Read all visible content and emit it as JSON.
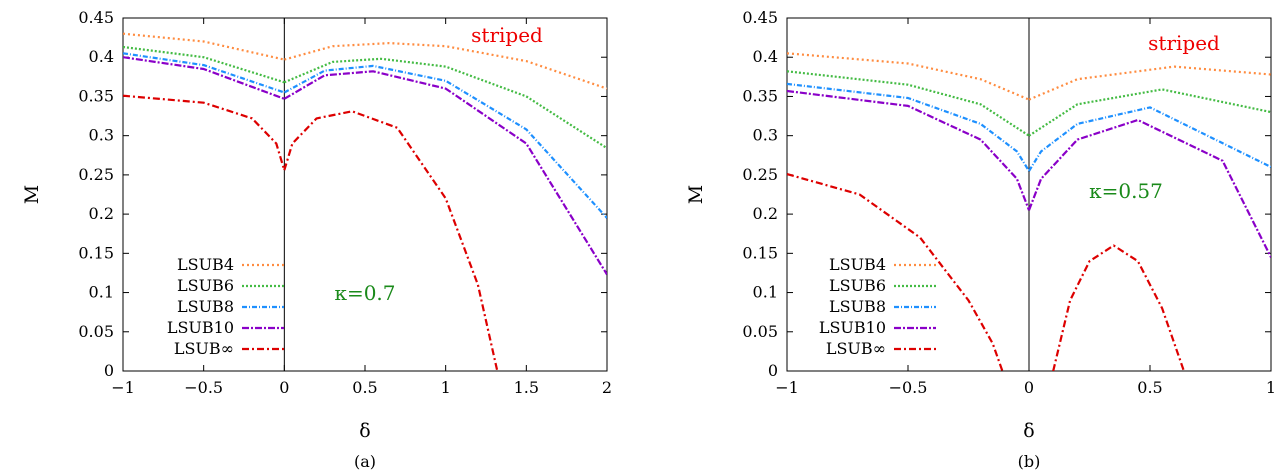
{
  "chart_data": [
    {
      "type": "line",
      "panel_label": "(a)",
      "xlabel": "δ",
      "ylabel": "M",
      "xlim": [
        -1,
        2
      ],
      "ylim": [
        0,
        0.45
      ],
      "xticks": [
        -1,
        -0.5,
        0,
        0.5,
        1,
        1.5,
        2
      ],
      "xtick_labels": [
        "−1",
        "−0.5",
        "0",
        "0.5",
        "1",
        "1.5",
        "2"
      ],
      "yticks": [
        0,
        0.05,
        0.1,
        0.15,
        0.2,
        0.25,
        0.3,
        0.35,
        0.4,
        0.45
      ],
      "ytick_labels": [
        "0",
        "0.05",
        "0.1",
        "0.15",
        "0.2",
        "0.25",
        "0.3",
        "0.35",
        "0.4",
        "0.45"
      ],
      "annotations": [
        {
          "text": "striped",
          "color": "#ee0000",
          "anchor_x": 1.55,
          "anchor_y": 0.425
        },
        {
          "text": "κ=0.7",
          "color": "#1a8a1a",
          "anchor_x": 0.52,
          "anchor_y": 0.105
        }
      ],
      "grid": false,
      "legend_position": "bottom-left",
      "series": [
        {
          "name": "LSUB4",
          "color": "#ff8c40",
          "dash": "2,3",
          "branches": [
            {
              "x": [
                -1,
                -0.5,
                0
              ],
              "y": [
                0.43,
                0.42,
                0.397
              ]
            },
            {
              "x": [
                0,
                0.3,
                0.65,
                1,
                1.5,
                2
              ],
              "y": [
                0.397,
                0.414,
                0.418,
                0.414,
                0.395,
                0.36
              ]
            }
          ]
        },
        {
          "name": "LSUB6",
          "color": "#44bb44",
          "dash": "2,2",
          "branches": [
            {
              "x": [
                -1,
                -0.5,
                0
              ],
              "y": [
                0.413,
                0.4,
                0.368
              ]
            },
            {
              "x": [
                0,
                0.3,
                0.6,
                1,
                1.5,
                2
              ],
              "y": [
                0.368,
                0.394,
                0.398,
                0.388,
                0.35,
                0.284
              ]
            }
          ]
        },
        {
          "name": "LSUB8",
          "color": "#1e90ff",
          "dash": "5,2,1,2",
          "branches": [
            {
              "x": [
                -1,
                -0.5,
                0
              ],
              "y": [
                0.405,
                0.39,
                0.355
              ]
            },
            {
              "x": [
                0,
                0.25,
                0.55,
                1,
                1.5,
                2
              ],
              "y": [
                0.355,
                0.383,
                0.389,
                0.37,
                0.308,
                0.195
              ]
            }
          ]
        },
        {
          "name": "LSUB10",
          "color": "#8a00c8",
          "dash": "7,2,2,2",
          "branches": [
            {
              "x": [
                -1,
                -0.5,
                0
              ],
              "y": [
                0.4,
                0.385,
                0.347
              ]
            },
            {
              "x": [
                0,
                0.25,
                0.55,
                1,
                1.5,
                2
              ],
              "y": [
                0.347,
                0.377,
                0.382,
                0.36,
                0.29,
                0.123
              ]
            }
          ]
        },
        {
          "name": "LSUB∞",
          "color": "#dd0000",
          "dash": "7,3,2,3",
          "branches": [
            {
              "x": [
                -1,
                -0.5,
                -0.2,
                -0.05,
                0
              ],
              "y": [
                0.351,
                0.342,
                0.322,
                0.29,
                0.256
              ]
            },
            {
              "x": [
                0,
                0.05,
                0.2,
                0.42,
                0.7,
                1,
                1.2,
                1.32
              ],
              "y": [
                0.256,
                0.29,
                0.322,
                0.331,
                0.31,
                0.22,
                0.11,
                0
              ]
            }
          ]
        }
      ]
    },
    {
      "type": "line",
      "panel_label": "(b)",
      "xlabel": "δ",
      "ylabel": "M",
      "xlim": [
        -1,
        1
      ],
      "ylim": [
        0,
        0.45
      ],
      "xticks": [
        -1,
        -0.5,
        0,
        0.5,
        1
      ],
      "xtick_labels": [
        "−1",
        "−0.5",
        "0",
        "0.5",
        "1"
      ],
      "yticks": [
        0,
        0.05,
        0.1,
        0.15,
        0.2,
        0.25,
        0.3,
        0.35,
        0.4,
        0.45
      ],
      "ytick_labels": [
        "0",
        "0.05",
        "0.1",
        "0.15",
        "0.2",
        "0.25",
        "0.3",
        "0.35",
        "0.4",
        "0.45"
      ],
      "annotations": [
        {
          "text": "striped",
          "color": "#ee0000",
          "anchor_x": 0.62,
          "anchor_y": 0.425
        },
        {
          "text": "κ=0.57",
          "color": "#1a8a1a",
          "anchor_x": 0.31,
          "anchor_y": 0.218
        }
      ],
      "grid": false,
      "legend_position": "bottom-left",
      "series": [
        {
          "name": "LSUB4",
          "color": "#ff8c40",
          "dash": "2,3",
          "branches": [
            {
              "x": [
                -1,
                -0.5,
                -0.2,
                0
              ],
              "y": [
                0.405,
                0.392,
                0.372,
                0.346
              ]
            },
            {
              "x": [
                0,
                0.2,
                0.6,
                1
              ],
              "y": [
                0.346,
                0.372,
                0.388,
                0.378
              ]
            }
          ]
        },
        {
          "name": "LSUB6",
          "color": "#44bb44",
          "dash": "2,2",
          "branches": [
            {
              "x": [
                -1,
                -0.5,
                -0.2,
                0
              ],
              "y": [
                0.382,
                0.365,
                0.34,
                0.3
              ]
            },
            {
              "x": [
                0,
                0.2,
                0.55,
                1
              ],
              "y": [
                0.3,
                0.34,
                0.359,
                0.33
              ]
            }
          ]
        },
        {
          "name": "LSUB8",
          "color": "#1e90ff",
          "dash": "5,2,1,2",
          "branches": [
            {
              "x": [
                -1,
                -0.5,
                -0.2,
                -0.05,
                0
              ],
              "y": [
                0.366,
                0.348,
                0.315,
                0.28,
                0.255
              ]
            },
            {
              "x": [
                0,
                0.05,
                0.2,
                0.5,
                1
              ],
              "y": [
                0.255,
                0.28,
                0.315,
                0.336,
                0.26
              ]
            }
          ]
        },
        {
          "name": "LSUB10",
          "color": "#8a00c8",
          "dash": "7,2,2,2",
          "branches": [
            {
              "x": [
                -1,
                -0.5,
                -0.2,
                -0.05,
                0
              ],
              "y": [
                0.357,
                0.338,
                0.295,
                0.245,
                0.205
              ]
            },
            {
              "x": [
                0,
                0.05,
                0.2,
                0.45,
                0.8,
                1
              ],
              "y": [
                0.205,
                0.245,
                0.295,
                0.32,
                0.268,
                0.145
              ]
            }
          ]
        },
        {
          "name": "LSUB∞",
          "color": "#dd0000",
          "dash": "7,3,2,3",
          "branches": [
            {
              "x": [
                -1,
                -0.7,
                -0.45,
                -0.25,
                -0.15,
                -0.11
              ],
              "y": [
                0.251,
                0.225,
                0.17,
                0.09,
                0.035,
                0
              ]
            },
            {
              "x": [
                0.1,
                0.17,
                0.25,
                0.35,
                0.45,
                0.55,
                0.64
              ],
              "y": [
                0,
                0.09,
                0.14,
                0.16,
                0.14,
                0.08,
                0
              ]
            }
          ]
        }
      ]
    }
  ]
}
